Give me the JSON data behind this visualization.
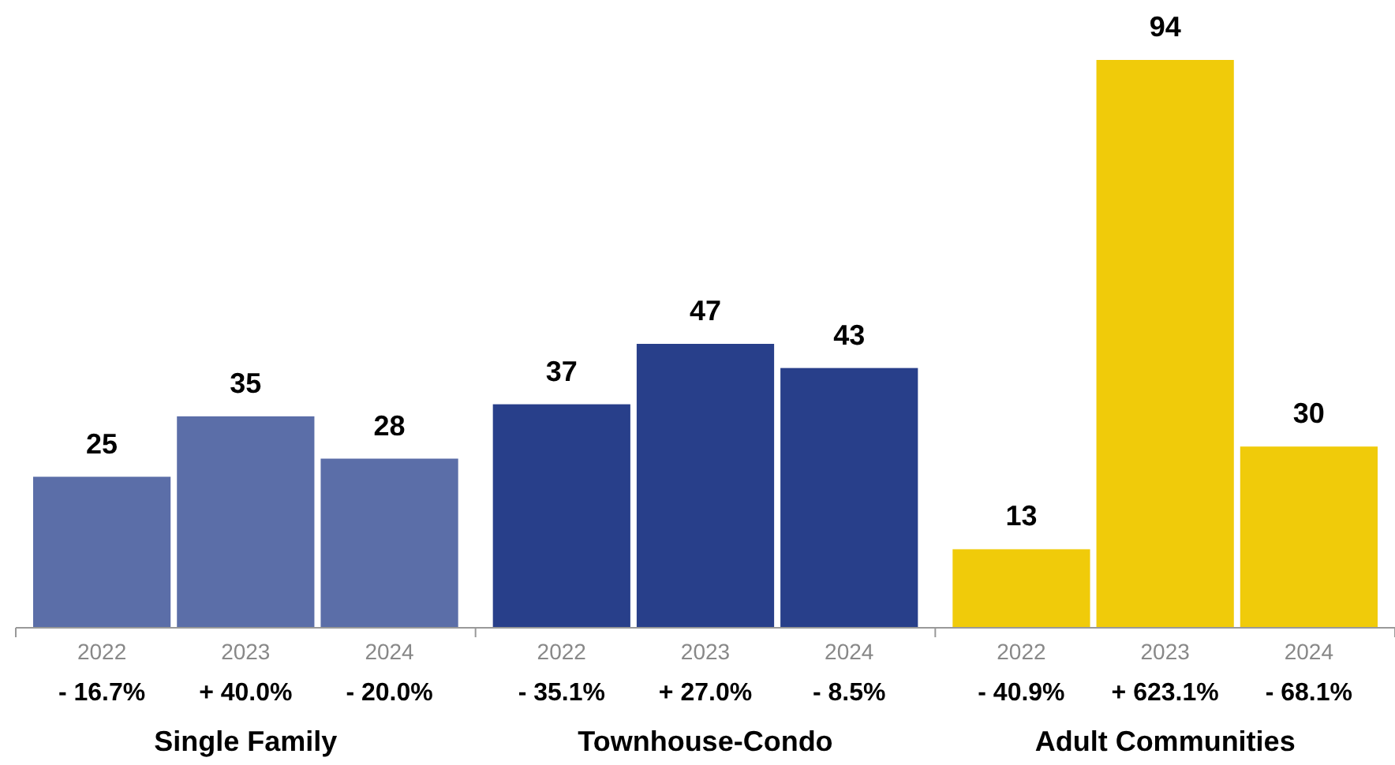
{
  "chart_data": {
    "type": "bar",
    "categories": [
      "2022",
      "2023",
      "2024",
      "2022",
      "2023",
      "2024",
      "2022",
      "2023",
      "2024"
    ],
    "values": [
      25,
      35,
      28,
      37,
      47,
      43,
      13,
      94,
      30
    ],
    "colors": [
      "#5b6ea8",
      "#5b6ea8",
      "#5b6ea8",
      "#283f8a",
      "#283f8a",
      "#283f8a",
      "#f0cb0a",
      "#f0cb0a",
      "#f0cb0a"
    ],
    "data_labels": true,
    "annotations": [
      "- 16.7%",
      "+ 40.0%",
      "- 20.0%",
      "- 35.1%",
      "+ 27.0%",
      "- 8.5%",
      "- 40.9%",
      "+ 623.1%",
      "- 68.1%",
      "Single Family",
      "Townhouse-Condo",
      "Adult Communities"
    ]
  }
}
